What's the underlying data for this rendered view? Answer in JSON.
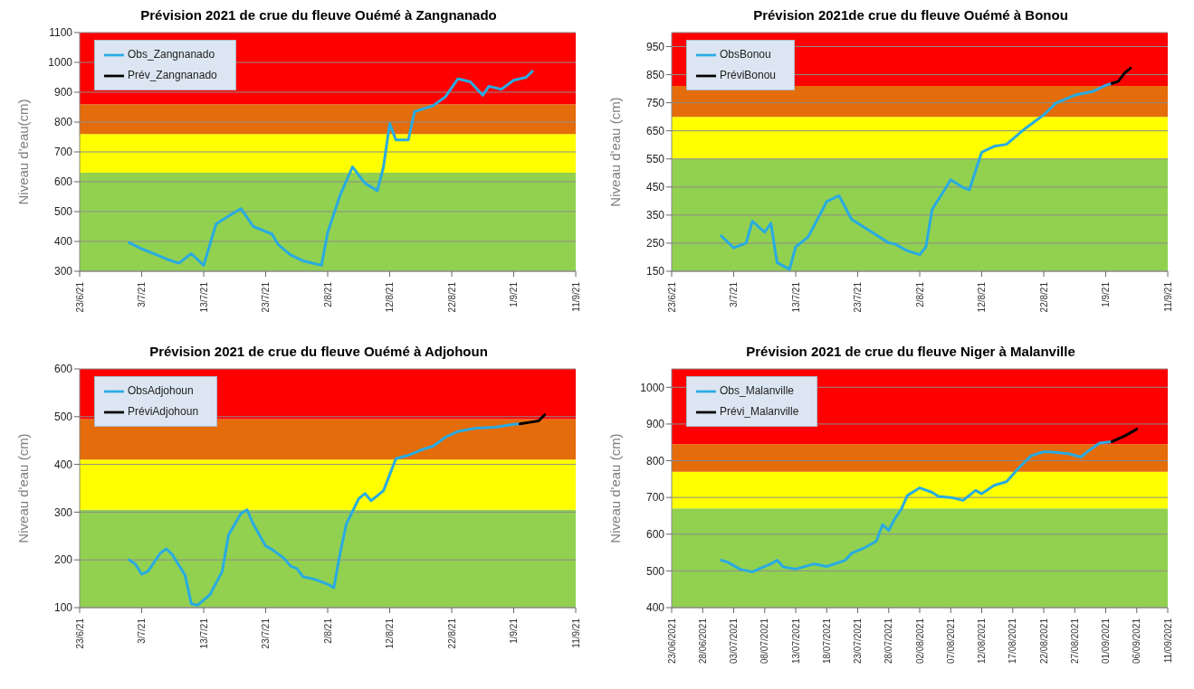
{
  "chart_data": [
    {
      "type": "line",
      "title": "Prévision 2021 de crue du fleuve Ouémé à Zangnanado",
      "ylabel": "Niveau d'eau(cm)",
      "xlim": [
        "2021-06-23",
        "2021-09-11"
      ],
      "xticks": [
        {
          "value": "2021-06-23",
          "label": "23/6/21"
        },
        {
          "value": "2021-07-03",
          "label": "3/7/21"
        },
        {
          "value": "2021-07-13",
          "label": "13/7/21"
        },
        {
          "value": "2021-07-23",
          "label": "23/7/21"
        },
        {
          "value": "2021-08-02",
          "label": "2/8/21"
        },
        {
          "value": "2021-08-12",
          "label": "12/8/21"
        },
        {
          "value": "2021-08-22",
          "label": "22/8/21"
        },
        {
          "value": "2021-09-01",
          "label": "1/9/21"
        },
        {
          "value": "2021-09-11",
          "label": "11/9/21"
        }
      ],
      "ylim": [
        300,
        1100
      ],
      "yticks": [
        300,
        400,
        500,
        600,
        700,
        800,
        900,
        1000,
        1100
      ],
      "grid": "y",
      "legend": "top left",
      "bands": [
        {
          "axis": "y",
          "from": 300,
          "to": 630,
          "color": "#92d050"
        },
        {
          "axis": "y",
          "from": 630,
          "to": 760,
          "color": "#ffff00"
        },
        {
          "axis": "y",
          "from": 760,
          "to": 860,
          "color": "#e46c0a"
        },
        {
          "axis": "y",
          "from": 860,
          "to": 1100,
          "color": "#ff0000"
        }
      ],
      "series": [
        {
          "name": "Obs_Zangnanado",
          "color": "#29abe2",
          "x": [
            "2021-07-01",
            "2021-07-03",
            "2021-07-05",
            "2021-07-07",
            "2021-07-09",
            "2021-07-11",
            "2021-07-13",
            "2021-07-15",
            "2021-07-17",
            "2021-07-19",
            "2021-07-21",
            "2021-07-24",
            "2021-07-25",
            "2021-07-27",
            "2021-07-29",
            "2021-08-01",
            "2021-08-02",
            "2021-08-04",
            "2021-08-06",
            "2021-08-08",
            "2021-08-10",
            "2021-08-11",
            "2021-08-12",
            "2021-08-13",
            "2021-08-15",
            "2021-08-16",
            "2021-08-19",
            "2021-08-21",
            "2021-08-23",
            "2021-08-25",
            "2021-08-27",
            "2021-08-28",
            "2021-08-30",
            "2021-09-01",
            "2021-09-03",
            "2021-09-04"
          ],
          "values": [
            396,
            375,
            359,
            341,
            327,
            359,
            320,
            458,
            485,
            510,
            450,
            425,
            390,
            355,
            335,
            320,
            430,
            555,
            650,
            595,
            570,
            650,
            795,
            740,
            740,
            835,
            855,
            885,
            945,
            935,
            890,
            920,
            910,
            940,
            950,
            970
          ]
        },
        {
          "name": "Prév_Zangnanado",
          "color": "#000000"
        }
      ]
    },
    {
      "type": "line",
      "title": "Prévision 2021de crue du fleuve Ouémé à Bonou",
      "ylabel": "Niveau d'eau (cm)",
      "xlim": [
        "2021-06-23",
        "2021-09-11"
      ],
      "xticks": [
        {
          "value": "2021-06-23",
          "label": "23/6/21"
        },
        {
          "value": "2021-07-03",
          "label": "3/7/21"
        },
        {
          "value": "2021-07-13",
          "label": "13/7/21"
        },
        {
          "value": "2021-07-23",
          "label": "23/7/21"
        },
        {
          "value": "2021-08-02",
          "label": "2/8/21"
        },
        {
          "value": "2021-08-12",
          "label": "12/8/21"
        },
        {
          "value": "2021-08-22",
          "label": "22/8/21"
        },
        {
          "value": "2021-09-01",
          "label": "1/9/21"
        },
        {
          "value": "2021-09-11",
          "label": "11/9/21"
        }
      ],
      "ylim": [
        150,
        1000
      ],
      "yticks": [
        150,
        250,
        350,
        450,
        550,
        650,
        750,
        850,
        950
      ],
      "grid": "y",
      "legend": "top left",
      "bands": [
        {
          "axis": "y",
          "from": 150,
          "to": 550,
          "color": "#92d050"
        },
        {
          "axis": "y",
          "from": 550,
          "to": 700,
          "color": "#ffff00"
        },
        {
          "axis": "y",
          "from": 700,
          "to": 810,
          "color": "#e46c0a"
        },
        {
          "axis": "y",
          "from": 810,
          "to": 1000,
          "color": "#ff0000"
        }
      ],
      "series": [
        {
          "name": "ObsBonou",
          "color": "#29abe2",
          "x": [
            "2021-07-01",
            "2021-07-03",
            "2021-07-05",
            "2021-07-06",
            "2021-07-08",
            "2021-07-09",
            "2021-07-10",
            "2021-07-12",
            "2021-07-13",
            "2021-07-15",
            "2021-07-18",
            "2021-07-20",
            "2021-07-22",
            "2021-07-25",
            "2021-07-28",
            "2021-07-29",
            "2021-07-31",
            "2021-08-02",
            "2021-08-03",
            "2021-08-04",
            "2021-08-06",
            "2021-08-07",
            "2021-08-09",
            "2021-08-10",
            "2021-08-12",
            "2021-08-14",
            "2021-08-16",
            "2021-08-19",
            "2021-08-22",
            "2021-08-24",
            "2021-08-27",
            "2021-08-30",
            "2021-09-01",
            "2021-09-02"
          ],
          "values": [
            276,
            233,
            250,
            328,
            289,
            321,
            181,
            157,
            237,
            272,
            398,
            419,
            335,
            293,
            251,
            247,
            223,
            209,
            237,
            370,
            440,
            476,
            448,
            440,
            574,
            595,
            602,
            658,
            707,
            749,
            777,
            791,
            812,
            819
          ]
        },
        {
          "name": "PréviBonou",
          "color": "#000000",
          "x": [
            "2021-09-02",
            "2021-09-03",
            "2021-09-04",
            "2021-09-05"
          ],
          "values": [
            819,
            826,
            855,
            873
          ]
        }
      ]
    },
    {
      "type": "line",
      "title": "Prévision 2021 de crue du fleuve Ouémé à Adjohoun",
      "ylabel": "Niveau d'eau (cm)",
      "xlim": [
        "2021-06-23",
        "2021-09-11"
      ],
      "xticks": [
        {
          "value": "2021-06-23",
          "label": "23/6/21"
        },
        {
          "value": "2021-07-03",
          "label": "3/7/21"
        },
        {
          "value": "2021-07-13",
          "label": "13/7/21"
        },
        {
          "value": "2021-07-23",
          "label": "23/7/21"
        },
        {
          "value": "2021-08-02",
          "label": "2/8/21"
        },
        {
          "value": "2021-08-12",
          "label": "12/8/21"
        },
        {
          "value": "2021-08-22",
          "label": "22/8/21"
        },
        {
          "value": "2021-09-01",
          "label": "1/9/21"
        },
        {
          "value": "2021-09-11",
          "label": "11/9/21"
        }
      ],
      "ylim": [
        100,
        600
      ],
      "yticks": [
        100,
        200,
        300,
        400,
        500,
        600
      ],
      "grid": "y",
      "legend": "top left",
      "bands": [
        {
          "axis": "y",
          "from": 100,
          "to": 305,
          "color": "#92d050"
        },
        {
          "axis": "y",
          "from": 305,
          "to": 410,
          "color": "#ffff00"
        },
        {
          "axis": "y",
          "from": 410,
          "to": 495,
          "color": "#e46c0a"
        },
        {
          "axis": "y",
          "from": 495,
          "to": 600,
          "color": "#ff0000"
        }
      ],
      "series": [
        {
          "name": "ObsAdjohoun",
          "color": "#29abe2",
          "x": [
            "2021-07-01",
            "2021-07-02",
            "2021-07-03",
            "2021-07-04",
            "2021-07-06",
            "2021-07-07",
            "2021-07-08",
            "2021-07-10",
            "2021-07-11",
            "2021-07-12",
            "2021-07-14",
            "2021-07-16",
            "2021-07-17",
            "2021-07-19",
            "2021-07-20",
            "2021-07-21",
            "2021-07-23",
            "2021-07-24",
            "2021-07-26",
            "2021-07-27",
            "2021-07-28",
            "2021-07-29",
            "2021-07-31",
            "2021-08-02",
            "2021-08-03",
            "2021-08-04",
            "2021-08-05",
            "2021-08-07",
            "2021-08-08",
            "2021-08-09",
            "2021-08-11",
            "2021-08-13",
            "2021-08-15",
            "2021-08-17",
            "2021-08-19",
            "2021-08-21",
            "2021-08-23",
            "2021-08-26",
            "2021-08-29",
            "2021-09-01",
            "2021-09-02"
          ],
          "values": [
            200,
            191,
            170,
            176,
            214,
            223,
            210,
            168,
            108,
            105,
            127,
            176,
            252,
            297,
            305,
            275,
            229,
            222,
            203,
            187,
            182,
            165,
            159,
            149,
            142,
            214,
            275,
            328,
            339,
            324,
            345,
            412,
            419,
            430,
            438,
            457,
            469,
            476,
            478,
            484,
            485
          ]
        },
        {
          "name": "PréviAdjohoun",
          "color": "#000000",
          "x": [
            "2021-09-02",
            "2021-09-04",
            "2021-09-05",
            "2021-09-06"
          ],
          "values": [
            485,
            489,
            491,
            504
          ]
        }
      ]
    },
    {
      "type": "line",
      "title": "Prévision 2021 de crue du fleuve Niger à Malanville",
      "ylabel": "Niveau d'eau (cm)",
      "xlim": [
        "2021-06-23",
        "2021-09-11"
      ],
      "xticks": [
        {
          "value": "2021-06-23",
          "label": "23/06/2021"
        },
        {
          "value": "2021-06-28",
          "label": "28/06/2021"
        },
        {
          "value": "2021-07-03",
          "label": "03/07/2021"
        },
        {
          "value": "2021-07-08",
          "label": "08/07/2021"
        },
        {
          "value": "2021-07-13",
          "label": "13/07/2021"
        },
        {
          "value": "2021-07-18",
          "label": "18/07/2021"
        },
        {
          "value": "2021-07-23",
          "label": "23/07/2021"
        },
        {
          "value": "2021-07-28",
          "label": "28/07/2021"
        },
        {
          "value": "2021-08-02",
          "label": "02/08/2021"
        },
        {
          "value": "2021-08-07",
          "label": "07/08/2021"
        },
        {
          "value": "2021-08-12",
          "label": "12/08/2021"
        },
        {
          "value": "2021-08-17",
          "label": "17/08/2021"
        },
        {
          "value": "2021-08-22",
          "label": "22/08/2021"
        },
        {
          "value": "2021-08-27",
          "label": "27/08/2021"
        },
        {
          "value": "2021-09-01",
          "label": "01/09/2021"
        },
        {
          "value": "2021-09-06",
          "label": "06/09/2021"
        },
        {
          "value": "2021-09-11",
          "label": "11/09/2021"
        }
      ],
      "ylim": [
        400,
        1050
      ],
      "yticks": [
        400,
        500,
        600,
        700,
        800,
        900,
        1000
      ],
      "grid": "y",
      "legend": "top left",
      "bands": [
        {
          "axis": "y",
          "from": 400,
          "to": 670,
          "color": "#92d050"
        },
        {
          "axis": "y",
          "from": 670,
          "to": 770,
          "color": "#ffff00"
        },
        {
          "axis": "y",
          "from": 770,
          "to": 845,
          "color": "#e46c0a"
        },
        {
          "axis": "y",
          "from": 845,
          "to": 1050,
          "color": "#ff0000"
        }
      ],
      "series": [
        {
          "name": "Obs_Malanville",
          "color": "#29abe2",
          "x": [
            "2021-07-01",
            "2021-07-02",
            "2021-07-04",
            "2021-07-06",
            "2021-07-07",
            "2021-07-09",
            "2021-07-10",
            "2021-07-11",
            "2021-07-13",
            "2021-07-16",
            "2021-07-18",
            "2021-07-21",
            "2021-07-22",
            "2021-07-24",
            "2021-07-26",
            "2021-07-27",
            "2021-07-28",
            "2021-07-29",
            "2021-07-30",
            "2021-07-31",
            "2021-08-02",
            "2021-08-04",
            "2021-08-05",
            "2021-08-07",
            "2021-08-09",
            "2021-08-11",
            "2021-08-12",
            "2021-08-14",
            "2021-08-16",
            "2021-08-18",
            "2021-08-20",
            "2021-08-22",
            "2021-08-23",
            "2021-08-26",
            "2021-08-28",
            "2021-08-29",
            "2021-08-31",
            "2021-09-02"
          ],
          "values": [
            529,
            524,
            505,
            497,
            505,
            519,
            529,
            511,
            505,
            519,
            512,
            529,
            548,
            562,
            581,
            626,
            610,
            643,
            667,
            705,
            726,
            714,
            703,
            700,
            692,
            719,
            710,
            733,
            743,
            781,
            814,
            824,
            824,
            819,
            810,
            824,
            848,
            852
          ]
        },
        {
          "name": "Prévi_Malanville",
          "color": "#000000",
          "x": [
            "2021-09-02",
            "2021-09-04",
            "2021-09-06"
          ],
          "values": [
            852,
            867,
            886
          ]
        }
      ]
    }
  ]
}
